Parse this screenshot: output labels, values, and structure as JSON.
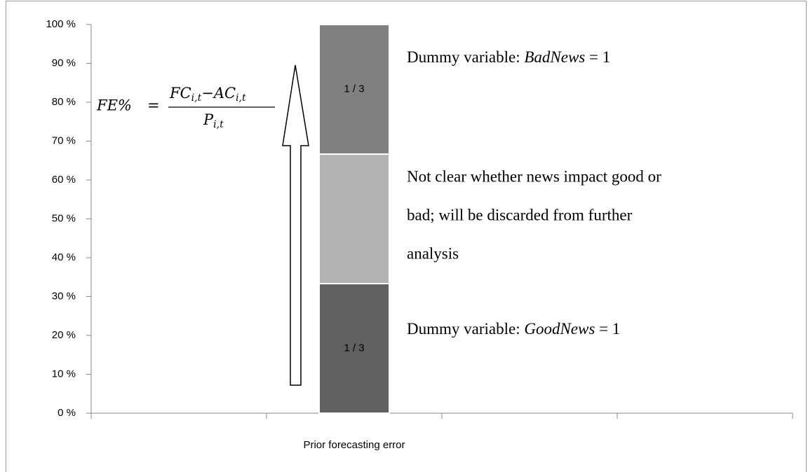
{
  "chart_data": {
    "type": "stacked-bar",
    "x_label": null,
    "categories": [
      null,
      "Prior forecasting error",
      null,
      null
    ],
    "series": [
      {
        "color": "#606060",
        "values": [
          null,
          33.33,
          null,
          null
        ],
        "value_labels": [
          null,
          "1 / 3",
          null,
          null
        ]
      },
      {
        "color": "#b3b3b3",
        "values": [
          null,
          33.33,
          null,
          null
        ]
      },
      {
        "color": "#808080",
        "values": [
          null,
          33.33,
          null,
          null
        ],
        "value_labels": [
          null,
          "1 / 3",
          null,
          null
        ]
      }
    ],
    "ylim": [
      0,
      100
    ],
    "yticks": [
      {
        "value": 0,
        "label": "0 %"
      },
      {
        "value": 10,
        "label": "10 %"
      },
      {
        "value": 20,
        "label": "20 %"
      },
      {
        "value": 30,
        "label": "30 %"
      },
      {
        "value": 40,
        "label": "40 %"
      },
      {
        "value": 50,
        "label": "50 %"
      },
      {
        "value": 60,
        "label": "60 %"
      },
      {
        "value": 70,
        "label": "70 %"
      },
      {
        "value": 80,
        "label": "80 %"
      },
      {
        "value": 90,
        "label": "90 %"
      },
      {
        "value": 100,
        "label": "100 %"
      }
    ],
    "grid": false,
    "annotations": {
      "bad_news": [
        "Dummy variable: ",
        "BadNews",
        " = 1"
      ],
      "unclear": [
        "Not clear whether news impact good or",
        "bad; will be discarded from further",
        "analysis"
      ],
      "good_news": [
        "Dummy variable: ",
        "GoodNews",
        " = 1"
      ]
    },
    "formula": {
      "lhs": "FE%",
      "eq": "=",
      "num": [
        "FC",
        "i,t",
        "−",
        "AC",
        "i,t"
      ],
      "den": [
        "P",
        "i,t"
      ]
    }
  }
}
